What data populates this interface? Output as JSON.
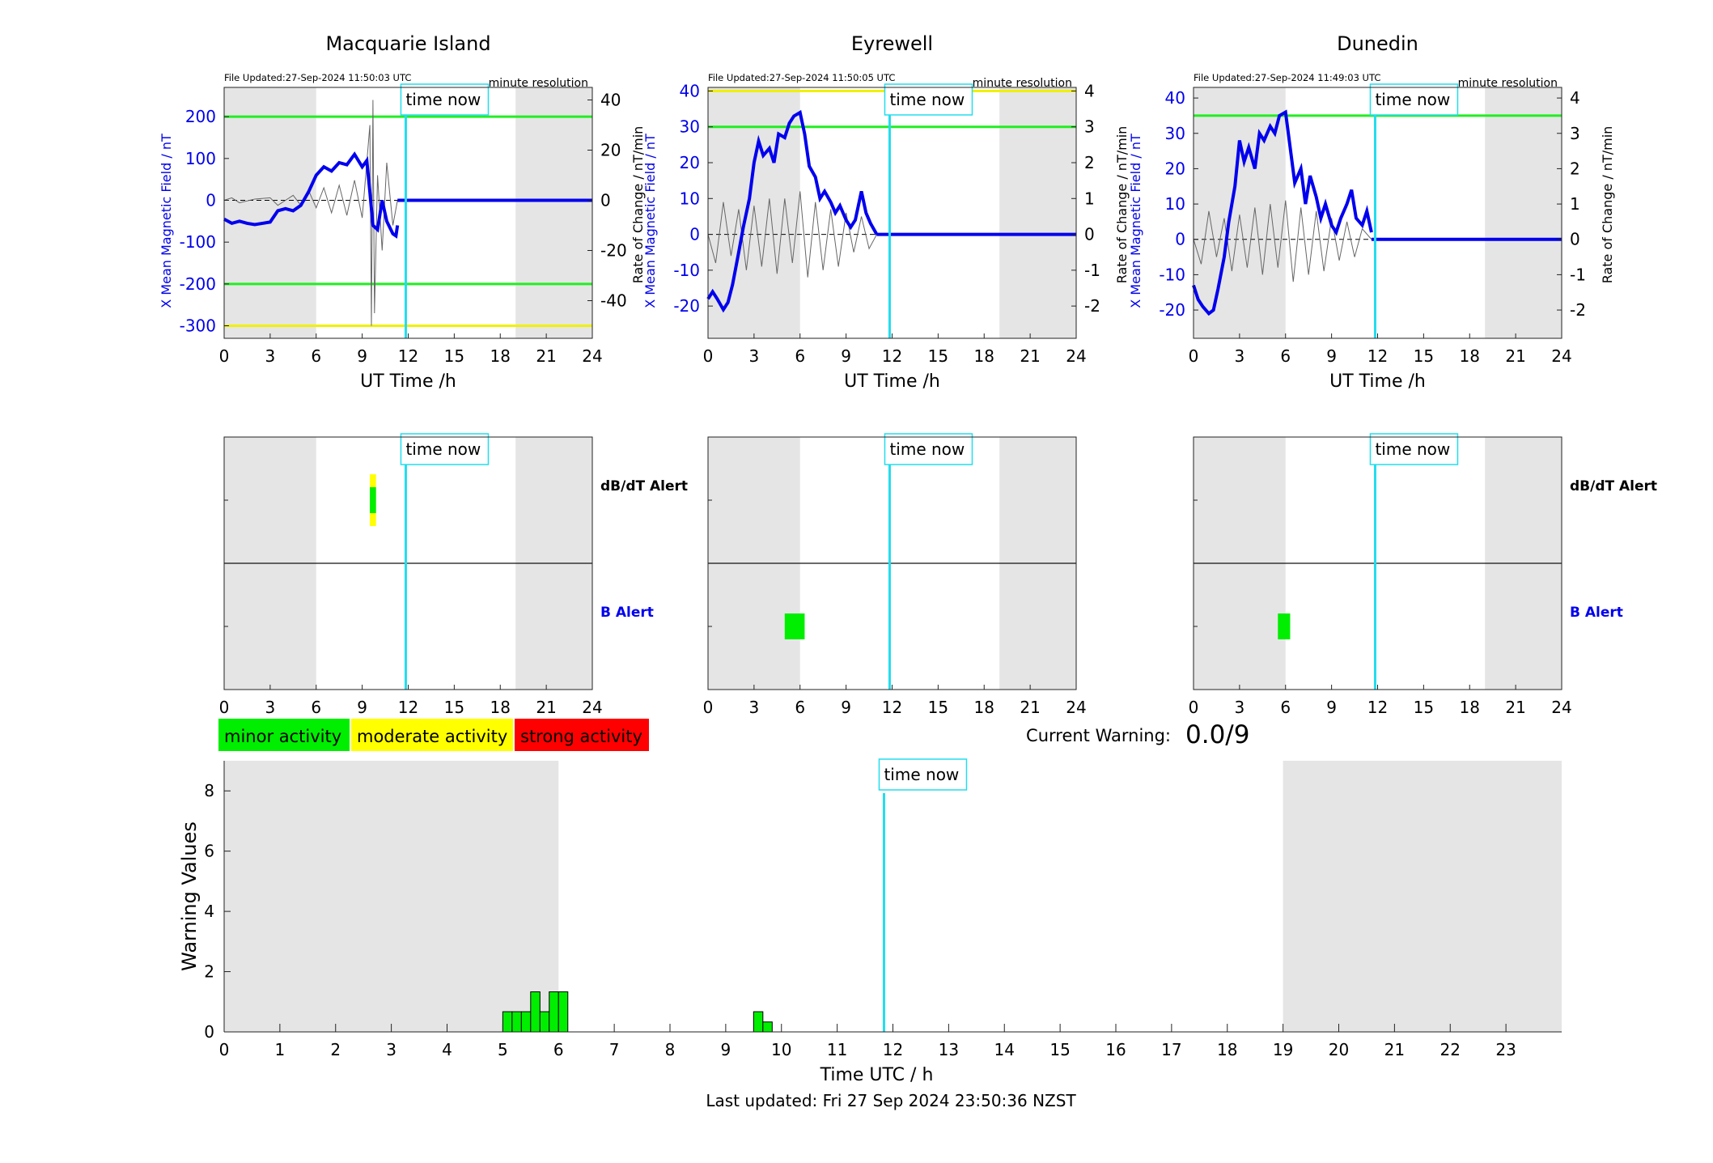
{
  "time_now_label": "time now",
  "time_now_utc": 11.84,
  "night": [
    [
      0,
      6
    ],
    [
      19,
      24
    ]
  ],
  "stations": [
    {
      "name": "Macquarie Island",
      "file_updated": "File Updated:27-Sep-2024 11:50:03 UTC",
      "resolution": "minute resolution",
      "x_ylabel": "X Mean Magnetic Field / nT",
      "r_ylabel": "Rate of Change / nT/min",
      "xlabel": "UT Time /h",
      "x_lim": [
        -330,
        270
      ],
      "x_ticks": [
        -300,
        -200,
        -100,
        0,
        100,
        200
      ],
      "r_lim": [
        -55,
        45
      ],
      "r_ticks": [
        -40,
        -20,
        0,
        20,
        40
      ],
      "green_levels": [
        200,
        -200
      ],
      "yellow_levels": [
        -300
      ],
      "x_series": [
        [
          0,
          -45
        ],
        [
          0.5,
          -55
        ],
        [
          1,
          -50
        ],
        [
          1.5,
          -55
        ],
        [
          2,
          -58
        ],
        [
          2.5,
          -55
        ],
        [
          3,
          -52
        ],
        [
          3.5,
          -25
        ],
        [
          4,
          -20
        ],
        [
          4.5,
          -25
        ],
        [
          5,
          -12
        ],
        [
          5.5,
          20
        ],
        [
          6,
          60
        ],
        [
          6.5,
          80
        ],
        [
          7,
          70
        ],
        [
          7.5,
          90
        ],
        [
          8,
          85
        ],
        [
          8.5,
          110
        ],
        [
          9,
          80
        ],
        [
          9.3,
          95
        ],
        [
          9.5,
          20
        ],
        [
          9.7,
          -60
        ],
        [
          10,
          -70
        ],
        [
          10.3,
          0
        ],
        [
          10.6,
          -50
        ],
        [
          11,
          -80
        ],
        [
          11.2,
          -85
        ],
        [
          11.3,
          -60
        ]
      ],
      "rate_series": [
        [
          0,
          0
        ],
        [
          0.5,
          1
        ],
        [
          1,
          -1
        ],
        [
          2,
          0.5
        ],
        [
          3,
          1
        ],
        [
          3.5,
          -2
        ],
        [
          4,
          0
        ],
        [
          4.5,
          2
        ],
        [
          5,
          -2
        ],
        [
          5.5,
          4
        ],
        [
          6,
          -3
        ],
        [
          6.5,
          5
        ],
        [
          7,
          -5
        ],
        [
          7.5,
          6
        ],
        [
          8,
          -6
        ],
        [
          8.5,
          8
        ],
        [
          9,
          -7
        ],
        [
          9.5,
          30
        ],
        [
          9.6,
          -50
        ],
        [
          9.7,
          40
        ],
        [
          9.8,
          -45
        ],
        [
          10,
          10
        ],
        [
          10.3,
          -20
        ],
        [
          10.6,
          15
        ],
        [
          11,
          -10
        ],
        [
          11.3,
          0
        ]
      ],
      "alerts": {
        "dbdt_label": "dB/dT Alert",
        "b_label": "B Alert",
        "dbdt": [
          {
            "start": 9.5,
            "end": 9.9,
            "level": "moderate"
          },
          {
            "start": 9.5,
            "end": 9.9,
            "level": "minor"
          }
        ],
        "b": []
      }
    },
    {
      "name": "Eyrewell",
      "file_updated": "File Updated:27-Sep-2024 11:50:05 UTC",
      "resolution": "minute resolution",
      "x_ylabel": "X Mean Magnetic Field / nT",
      "r_ylabel": "Rate of Change / nT/min",
      "xlabel": "UT Time /h",
      "x_lim": [
        -29,
        41
      ],
      "x_ticks": [
        -20,
        -10,
        0,
        10,
        20,
        30,
        40
      ],
      "r_lim": [
        -2.9,
        4.1
      ],
      "r_ticks": [
        -2,
        -1,
        0,
        1,
        2,
        3,
        4
      ],
      "green_levels": [
        30
      ],
      "yellow_levels": [
        40
      ],
      "x_series": [
        [
          0,
          -18
        ],
        [
          0.3,
          -16
        ],
        [
          0.6,
          -18
        ],
        [
          1,
          -21
        ],
        [
          1.3,
          -19
        ],
        [
          1.6,
          -14
        ],
        [
          2,
          -5
        ],
        [
          2.3,
          2
        ],
        [
          2.7,
          10
        ],
        [
          3,
          20
        ],
        [
          3.3,
          26
        ],
        [
          3.6,
          22
        ],
        [
          4,
          24
        ],
        [
          4.3,
          20
        ],
        [
          4.6,
          28
        ],
        [
          5,
          27
        ],
        [
          5.3,
          31
        ],
        [
          5.6,
          33
        ],
        [
          6,
          34
        ],
        [
          6.3,
          28
        ],
        [
          6.6,
          19
        ],
        [
          7,
          16
        ],
        [
          7.3,
          10
        ],
        [
          7.6,
          12
        ],
        [
          8,
          9
        ],
        [
          8.3,
          6
        ],
        [
          8.6,
          8
        ],
        [
          9,
          4
        ],
        [
          9.3,
          2
        ],
        [
          9.6,
          4
        ],
        [
          10,
          12
        ],
        [
          10.3,
          6
        ],
        [
          10.6,
          3
        ],
        [
          11,
          0
        ]
      ],
      "rate_series": [
        [
          0,
          0
        ],
        [
          0.5,
          -0.8
        ],
        [
          1,
          0.9
        ],
        [
          1.5,
          -0.6
        ],
        [
          2,
          0.7
        ],
        [
          2.5,
          -1
        ],
        [
          3,
          0.8
        ],
        [
          3.5,
          -0.9
        ],
        [
          4,
          1
        ],
        [
          4.5,
          -1.1
        ],
        [
          5,
          1
        ],
        [
          5.5,
          -0.8
        ],
        [
          6,
          1.2
        ],
        [
          6.5,
          -1.2
        ],
        [
          7,
          0.9
        ],
        [
          7.5,
          -1
        ],
        [
          8,
          0.7
        ],
        [
          8.5,
          -0.9
        ],
        [
          9,
          0.6
        ],
        [
          9.5,
          -0.5
        ],
        [
          10,
          0.5
        ],
        [
          10.5,
          -0.4
        ],
        [
          11,
          0
        ]
      ],
      "alerts": {
        "dbdt_label": "",
        "b_label": "",
        "dbdt": [],
        "b": [
          {
            "start": 5.0,
            "end": 6.3,
            "level": "minor"
          }
        ]
      }
    },
    {
      "name": "Dunedin",
      "file_updated": "File Updated:27-Sep-2024 11:49:03 UTC",
      "resolution": "minute resolution",
      "x_ylabel": "X Mean Magnetic Field / nT",
      "r_ylabel": "Rate of Change / nT/min",
      "xlabel": "UT Time /h",
      "x_lim": [
        -28,
        43
      ],
      "x_ticks": [
        -20,
        -10,
        0,
        10,
        20,
        30,
        40
      ],
      "r_lim": [
        -2.8,
        4.3
      ],
      "r_ticks": [
        -2,
        -1,
        0,
        1,
        2,
        3,
        4
      ],
      "green_levels": [
        35
      ],
      "yellow_levels": [],
      "x_series": [
        [
          0,
          -13
        ],
        [
          0.3,
          -17
        ],
        [
          0.6,
          -19
        ],
        [
          1,
          -21
        ],
        [
          1.3,
          -20
        ],
        [
          1.6,
          -14
        ],
        [
          2,
          -5
        ],
        [
          2.3,
          5
        ],
        [
          2.7,
          15
        ],
        [
          3,
          28
        ],
        [
          3.3,
          22
        ],
        [
          3.6,
          26
        ],
        [
          4,
          20
        ],
        [
          4.3,
          30
        ],
        [
          4.6,
          28
        ],
        [
          5,
          32
        ],
        [
          5.3,
          30
        ],
        [
          5.6,
          35
        ],
        [
          6,
          36
        ],
        [
          6.3,
          26
        ],
        [
          6.6,
          16
        ],
        [
          7,
          20
        ],
        [
          7.3,
          10
        ],
        [
          7.6,
          18
        ],
        [
          8,
          12
        ],
        [
          8.3,
          6
        ],
        [
          8.6,
          10
        ],
        [
          9,
          4
        ],
        [
          9.3,
          2
        ],
        [
          9.6,
          6
        ],
        [
          10,
          10
        ],
        [
          10.3,
          14
        ],
        [
          10.6,
          6
        ],
        [
          11,
          4
        ],
        [
          11.3,
          8
        ],
        [
          11.6,
          2
        ]
      ],
      "rate_series": [
        [
          0,
          0
        ],
        [
          0.5,
          -0.7
        ],
        [
          1,
          0.8
        ],
        [
          1.5,
          -0.5
        ],
        [
          2,
          0.6
        ],
        [
          2.5,
          -0.9
        ],
        [
          3,
          0.7
        ],
        [
          3.5,
          -0.8
        ],
        [
          4,
          0.9
        ],
        [
          4.5,
          -1
        ],
        [
          5,
          1
        ],
        [
          5.5,
          -0.8
        ],
        [
          6,
          1.1
        ],
        [
          6.5,
          -1.2
        ],
        [
          7,
          0.9
        ],
        [
          7.5,
          -1
        ],
        [
          8,
          0.8
        ],
        [
          8.5,
          -0.9
        ],
        [
          9,
          0.6
        ],
        [
          9.5,
          -0.6
        ],
        [
          10,
          0.5
        ],
        [
          10.5,
          -0.5
        ],
        [
          11,
          0.3
        ],
        [
          11.6,
          0
        ]
      ],
      "alerts": {
        "dbdt_label": "dB/dT Alert",
        "b_label": "B Alert",
        "dbdt": [],
        "b": [
          {
            "start": 5.5,
            "end": 6.3,
            "level": "minor"
          }
        ]
      }
    }
  ],
  "legend": [
    {
      "label": "minor activity",
      "color": "#00ee00"
    },
    {
      "label": "moderate activity",
      "color": "#ffff00"
    },
    {
      "label": "strong activity",
      "color": "#ff0000"
    }
  ],
  "current_warning": {
    "label": "Current Warning:",
    "value": "0.0/9"
  },
  "chart_data": {
    "type": "bar",
    "ylabel": "Warning Values",
    "xlabel": "Time UTC / h",
    "ylim": [
      0,
      9
    ],
    "yticks": [
      0,
      2,
      4,
      6,
      8
    ],
    "xlim": [
      0,
      24
    ],
    "xticks": [
      0,
      1,
      2,
      3,
      4,
      5,
      6,
      7,
      8,
      9,
      10,
      11,
      12,
      13,
      14,
      15,
      16,
      17,
      18,
      19,
      20,
      21,
      22,
      23
    ],
    "bars": [
      {
        "x": 5.0,
        "value": 0.67
      },
      {
        "x": 5.167,
        "value": 0.67
      },
      {
        "x": 5.333,
        "value": 0.67
      },
      {
        "x": 5.5,
        "value": 1.33
      },
      {
        "x": 5.667,
        "value": 0.67
      },
      {
        "x": 5.833,
        "value": 1.33
      },
      {
        "x": 6.0,
        "value": 1.33
      },
      {
        "x": 9.5,
        "value": 0.67
      },
      {
        "x": 9.667,
        "value": 0.33
      }
    ],
    "bar_width": 0.167,
    "bar_color": "#00ee00"
  },
  "last_updated": "Last updated: Fri 27 Sep 2024 23:50:36 NZST"
}
